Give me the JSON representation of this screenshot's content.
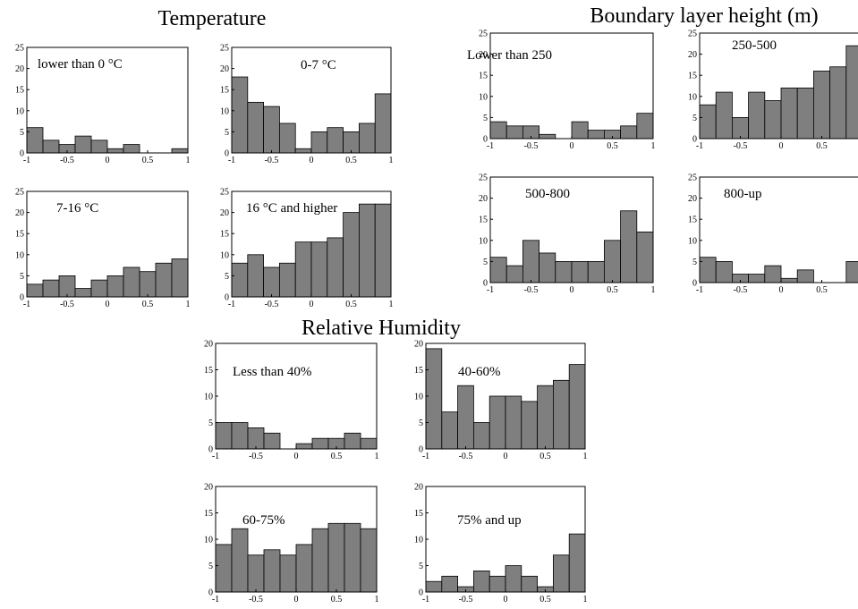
{
  "groups": [
    {
      "title": "Temperature"
    },
    {
      "title": "Boundary layer height (m)"
    },
    {
      "title": "Relative Humidity"
    }
  ],
  "chart_data": [
    {
      "type": "bar",
      "group": 0,
      "label": "lower than 0 °C",
      "xlim": [
        -1,
        1
      ],
      "ylim": [
        0,
        25
      ],
      "xticks": [
        "-1",
        "-0.5",
        "0",
        "0.5",
        "1"
      ],
      "yticks": [
        "0",
        "5",
        "10",
        "15",
        "20",
        "25"
      ],
      "values": [
        6,
        3,
        2,
        4,
        3,
        1,
        2,
        0,
        0,
        1
      ]
    },
    {
      "type": "bar",
      "group": 0,
      "label": "0-7 °C",
      "xlim": [
        -1,
        1
      ],
      "ylim": [
        0,
        25
      ],
      "xticks": [
        "-1",
        "-0.5",
        "0",
        "0.5",
        "1"
      ],
      "yticks": [
        "0",
        "5",
        "10",
        "15",
        "20",
        "25"
      ],
      "values": [
        18,
        12,
        11,
        7,
        1,
        5,
        6,
        5,
        7,
        14
      ]
    },
    {
      "type": "bar",
      "group": 0,
      "label": "7-16 °C",
      "xlim": [
        -1,
        1
      ],
      "ylim": [
        0,
        25
      ],
      "xticks": [
        "-1",
        "-0.5",
        "0",
        "0.5",
        "1"
      ],
      "yticks": [
        "0",
        "5",
        "10",
        "15",
        "20",
        "25"
      ],
      "values": [
        3,
        4,
        5,
        2,
        4,
        5,
        7,
        6,
        8,
        9
      ]
    },
    {
      "type": "bar",
      "group": 0,
      "label": "16 °C and higher",
      "xlim": [
        -1,
        1
      ],
      "ylim": [
        0,
        25
      ],
      "xticks": [
        "-1",
        "-0.5",
        "0",
        "0.5",
        "1"
      ],
      "yticks": [
        "0",
        "5",
        "10",
        "15",
        "20",
        "25"
      ],
      "values": [
        8,
        10,
        7,
        8,
        13,
        13,
        14,
        20,
        22,
        22
      ]
    },
    {
      "type": "bar",
      "group": 1,
      "label": "Lower than 250",
      "xlim": [
        -1,
        1
      ],
      "ylim": [
        0,
        25
      ],
      "xticks": [
        "-1",
        "-0.5",
        "0",
        "0.5",
        "1"
      ],
      "yticks": [
        "0",
        "5",
        "10",
        "15",
        "20",
        "25"
      ],
      "values": [
        4,
        3,
        3,
        1,
        0,
        4,
        2,
        2,
        3,
        6
      ]
    },
    {
      "type": "bar",
      "group": 1,
      "label": "250-500",
      "xlim": [
        -1,
        1
      ],
      "ylim": [
        0,
        25
      ],
      "xticks": [
        "-1",
        "-0.5",
        "0",
        "0.5"
      ],
      "yticks": [
        "0",
        "5",
        "10",
        "15",
        "20",
        "25"
      ],
      "values": [
        8,
        11,
        5,
        11,
        9,
        12,
        12,
        16,
        17,
        22
      ]
    },
    {
      "type": "bar",
      "group": 1,
      "label": "500-800",
      "xlim": [
        -1,
        1
      ],
      "ylim": [
        0,
        25
      ],
      "xticks": [
        "-1",
        "-0.5",
        "0",
        "0.5",
        "1"
      ],
      "yticks": [
        "0",
        "5",
        "10",
        "15",
        "20",
        "25"
      ],
      "values": [
        6,
        4,
        10,
        7,
        5,
        5,
        5,
        10,
        17,
        12
      ]
    },
    {
      "type": "bar",
      "group": 1,
      "label": "800-up",
      "xlim": [
        -1,
        1
      ],
      "ylim": [
        0,
        25
      ],
      "xticks": [
        "-1",
        "-0.5",
        "0",
        "0.5"
      ],
      "yticks": [
        "0",
        "5",
        "10",
        "15",
        "20",
        "25"
      ],
      "values": [
        6,
        5,
        2,
        2,
        4,
        1,
        3,
        0,
        0,
        5
      ]
    },
    {
      "type": "bar",
      "group": 2,
      "label": "Less than 40%",
      "xlim": [
        -1,
        1
      ],
      "ylim": [
        0,
        20
      ],
      "xticks": [
        "-1",
        "-0.5",
        "0",
        "0.5",
        "1"
      ],
      "yticks": [
        "0",
        "5",
        "10",
        "15",
        "20"
      ],
      "values": [
        5,
        5,
        4,
        3,
        0,
        1,
        2,
        2,
        3,
        2
      ]
    },
    {
      "type": "bar",
      "group": 2,
      "label": "40-60%",
      "xlim": [
        -1,
        1
      ],
      "ylim": [
        0,
        20
      ],
      "xticks": [
        "-1",
        "-0.5",
        "0",
        "0.5",
        "1"
      ],
      "yticks": [
        "0",
        "5",
        "10",
        "15",
        "20"
      ],
      "values": [
        19,
        7,
        12,
        5,
        10,
        10,
        9,
        12,
        13,
        16
      ]
    },
    {
      "type": "bar",
      "group": 2,
      "label": "60-75%",
      "xlim": [
        -1,
        1
      ],
      "ylim": [
        0,
        20
      ],
      "xticks": [
        "-1",
        "-0.5",
        "0",
        "0.5",
        "1"
      ],
      "yticks": [
        "0",
        "5",
        "10",
        "15",
        "20"
      ],
      "values": [
        9,
        12,
        7,
        8,
        7,
        9,
        12,
        13,
        13,
        12
      ]
    },
    {
      "type": "bar",
      "group": 2,
      "label": "75% and up",
      "xlim": [
        -1,
        1
      ],
      "ylim": [
        0,
        20
      ],
      "xticks": [
        "-1",
        "-0.5",
        "0",
        "0.5",
        "1"
      ],
      "yticks": [
        "0",
        "5",
        "10",
        "15",
        "20"
      ],
      "values": [
        2,
        3,
        1,
        4,
        3,
        5,
        3,
        1,
        7,
        11
      ]
    }
  ]
}
